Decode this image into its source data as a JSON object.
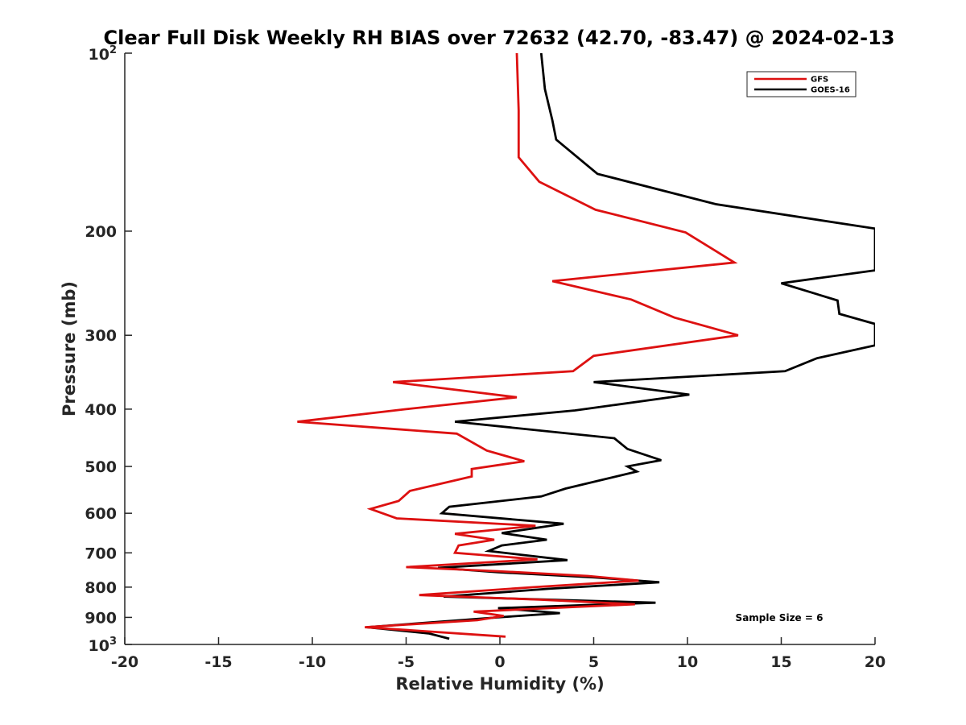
{
  "chart_data": {
    "type": "line",
    "title": "Clear Full Disk Weekly RH BIAS over 72632 (42.70, -83.47) @ 2024-02-13",
    "xlabel": "Relative Humidity (%)",
    "ylabel": "Pressure (mb)",
    "xlim": [
      -20,
      20
    ],
    "ylim": [
      100,
      1000
    ],
    "y_scale": "log",
    "y_reversed": true,
    "grid": false,
    "legend_placement": "top-right",
    "x_ticks": [
      -20,
      -15,
      -10,
      -5,
      0,
      5,
      10,
      15,
      20
    ],
    "x_tick_labels": [
      "-20",
      "-15",
      "-10",
      "-5",
      "0",
      "5",
      "10",
      "15",
      "20"
    ],
    "y_ticks": [
      {
        "value": 100,
        "base": "10",
        "exp": "2"
      },
      {
        "value": 200,
        "label": "200"
      },
      {
        "value": 300,
        "label": "300"
      },
      {
        "value": 400,
        "label": "400"
      },
      {
        "value": 500,
        "label": "500"
      },
      {
        "value": 600,
        "label": "600"
      },
      {
        "value": 700,
        "label": "700"
      },
      {
        "value": 800,
        "label": "800"
      },
      {
        "value": 900,
        "label": "900"
      },
      {
        "value": 1000,
        "base": "10",
        "exp": "3"
      }
    ],
    "annotation": "Sample Size = 6",
    "series": [
      {
        "name": "GFS",
        "color": "#dd1111",
        "points": [
          [
            0.9,
            100
          ],
          [
            1.0,
            125
          ],
          [
            1.0,
            150
          ],
          [
            2.1,
            165
          ],
          [
            5.1,
            184
          ],
          [
            9.9,
            201
          ],
          [
            12.5,
            226
          ],
          [
            2.8,
            243
          ],
          [
            7.0,
            261
          ],
          [
            9.3,
            280
          ],
          [
            12.7,
            300
          ],
          [
            5.0,
            325
          ],
          [
            3.9,
            345
          ],
          [
            -5.7,
            360
          ],
          [
            0.9,
            382
          ],
          [
            -5.0,
            400
          ],
          [
            -10.8,
            420
          ],
          [
            -2.3,
            440
          ],
          [
            -0.7,
            470
          ],
          [
            1.3,
            490
          ],
          [
            -1.5,
            505
          ],
          [
            -1.5,
            520
          ],
          [
            -4.8,
            550
          ],
          [
            -5.4,
            572
          ],
          [
            -6.9,
            590
          ],
          [
            -5.5,
            612
          ],
          [
            1.9,
            630
          ],
          [
            -2.4,
            650
          ],
          [
            -0.3,
            665
          ],
          [
            -2.2,
            680
          ],
          [
            -2.4,
            700
          ],
          [
            2.0,
            718
          ],
          [
            -5.0,
            740
          ],
          [
            -0.1,
            752
          ],
          [
            4.7,
            766
          ],
          [
            7.4,
            780
          ],
          [
            1.8,
            800
          ],
          [
            -4.3,
            825
          ],
          [
            2.1,
            840
          ],
          [
            7.2,
            855
          ],
          [
            -1.4,
            880
          ],
          [
            0.2,
            895
          ],
          [
            -1.2,
            910
          ],
          [
            -7.2,
            935
          ],
          [
            0.3,
            970
          ]
        ]
      },
      {
        "name": "GOES-16",
        "color": "#000000",
        "points": [
          [
            2.2,
            100
          ],
          [
            2.4,
            115
          ],
          [
            2.8,
            130
          ],
          [
            3.0,
            140
          ],
          [
            5.2,
            160
          ],
          [
            11.5,
            180
          ],
          [
            20.0,
            198
          ],
          [
            20.0,
            233
          ],
          [
            15.0,
            245
          ],
          [
            18.0,
            262
          ],
          [
            18.1,
            276
          ],
          [
            20.0,
            287
          ],
          [
            20.0,
            312
          ],
          [
            16.9,
            328
          ],
          [
            15.2,
            345
          ],
          [
            5.0,
            360
          ],
          [
            10.1,
            378
          ],
          [
            4.0,
            402
          ],
          [
            -2.4,
            420
          ],
          [
            6.1,
            448
          ],
          [
            6.8,
            467
          ],
          [
            8.6,
            488
          ],
          [
            6.8,
            500
          ],
          [
            7.3,
            510
          ],
          [
            3.5,
            545
          ],
          [
            2.2,
            562
          ],
          [
            -2.7,
            585
          ],
          [
            -3.1,
            600
          ],
          [
            3.4,
            625
          ],
          [
            0.1,
            648
          ],
          [
            2.5,
            665
          ],
          [
            0.1,
            680
          ],
          [
            -0.6,
            695
          ],
          [
            3.6,
            720
          ],
          [
            -3.3,
            742
          ],
          [
            -0.1,
            755
          ],
          [
            5.0,
            770
          ],
          [
            8.5,
            785
          ],
          [
            2.6,
            805
          ],
          [
            -3.0,
            830
          ],
          [
            8.3,
            850
          ],
          [
            -0.1,
            868
          ],
          [
            3.2,
            885
          ],
          [
            -0.1,
            900
          ],
          [
            -7.1,
            935
          ],
          [
            -3.8,
            958
          ],
          [
            -2.7,
            978
          ]
        ]
      }
    ]
  }
}
